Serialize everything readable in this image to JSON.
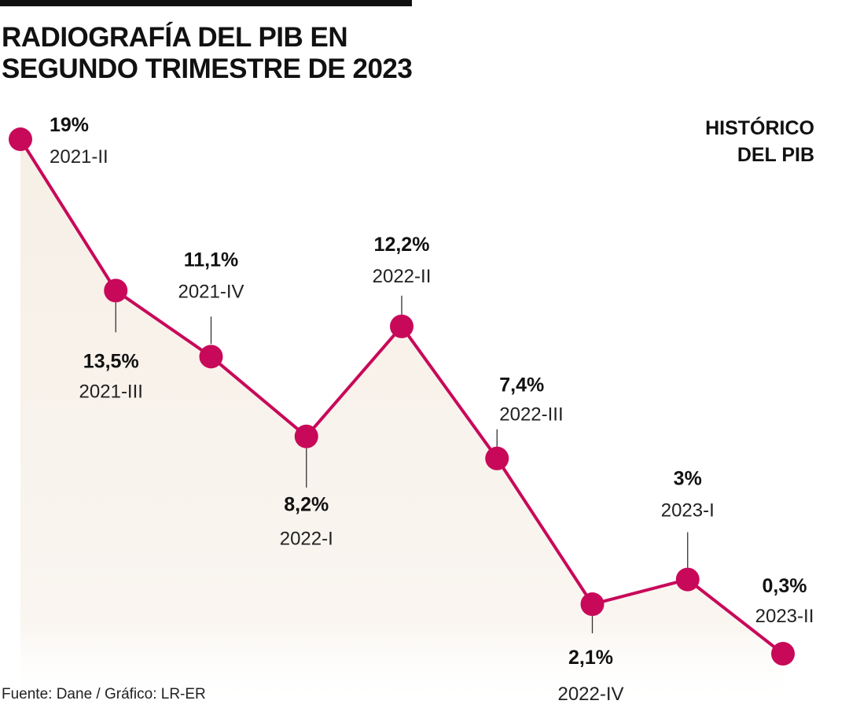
{
  "title_lines": [
    "RADIOGRAFÍA DEL PIB EN",
    "SEGUNDO TRIMESTRE DE 2023"
  ],
  "legend_lines": [
    "HISTÓRICO",
    "DEL PIB"
  ],
  "source": "Fuente: Dane / Gráfico: LR-ER",
  "colors": {
    "line": "#c8095a",
    "fill": "#f6efe6",
    "text": "#111111"
  },
  "chart_data": {
    "type": "line",
    "categories": [
      "2021-II",
      "2021-III",
      "2021-IV",
      "2022-I",
      "2022-II",
      "2022-III",
      "2022-IV",
      "2023-I",
      "2023-II"
    ],
    "values": [
      19,
      13.5,
      11.1,
      8.2,
      12.2,
      7.4,
      2.1,
      3,
      0.3
    ],
    "data_labels": [
      "19%",
      "13,5%",
      "11,1%",
      "8,2%",
      "12,2%",
      "7,4%",
      "2,1%",
      "3%",
      "0,3%"
    ],
    "area_fill": true,
    "grid": false,
    "axes_visible": false
  }
}
